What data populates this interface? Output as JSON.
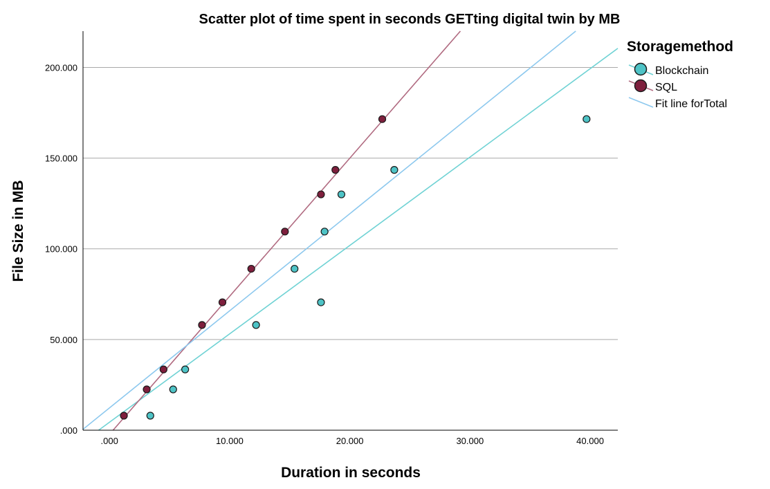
{
  "chart_data": {
    "type": "scatter",
    "title": "Scatter plot of time spent in seconds GETting digital twin by MB",
    "xlabel": "Duration in seconds",
    "ylabel": "File Size in MB",
    "xlim": [
      -2.2,
      42.3
    ],
    "ylim": [
      0,
      220
    ],
    "x_ticks": [
      0,
      10,
      20,
      30,
      40
    ],
    "x_tick_labels": [
      ".000",
      "10.000",
      "20.000",
      "30.000",
      "40.000"
    ],
    "y_ticks": [
      0,
      50,
      100,
      150,
      200
    ],
    "y_tick_labels": [
      ".000",
      "50.000",
      "100.000",
      "150.000",
      "200.000"
    ],
    "grid": "horizontal",
    "legend_title": "Storagemethod",
    "legend_placement": "right",
    "series": [
      {
        "name": "Blockchain",
        "color": "#4ec3c6",
        "points": [
          {
            "x": 3.4,
            "y": 8
          },
          {
            "x": 5.3,
            "y": 22.5
          },
          {
            "x": 6.3,
            "y": 33.5
          },
          {
            "x": 12.2,
            "y": 58
          },
          {
            "x": 17.6,
            "y": 70.5
          },
          {
            "x": 15.4,
            "y": 89
          },
          {
            "x": 17.9,
            "y": 109.5
          },
          {
            "x": 19.3,
            "y": 130
          },
          {
            "x": 23.7,
            "y": 143.5
          },
          {
            "x": 39.7,
            "y": 171.5
          }
        ],
        "fit": {
          "x": [
            -0.9,
            42.3
          ],
          "y": [
            0,
            210.5
          ],
          "color": "#6fd2d4"
        }
      },
      {
        "name": "SQL",
        "color": "#7e1f3d",
        "points": [
          {
            "x": 1.2,
            "y": 8
          },
          {
            "x": 3.1,
            "y": 22.5
          },
          {
            "x": 4.5,
            "y": 33.5
          },
          {
            "x": 7.7,
            "y": 58
          },
          {
            "x": 9.4,
            "y": 70.5
          },
          {
            "x": 11.8,
            "y": 89
          },
          {
            "x": 14.6,
            "y": 109.5
          },
          {
            "x": 17.6,
            "y": 130
          },
          {
            "x": 18.8,
            "y": 143.5
          },
          {
            "x": 22.7,
            "y": 171.5
          }
        ],
        "fit": {
          "x": [
            0.3,
            29.2
          ],
          "y": [
            0,
            220
          ],
          "color": "#b06a80"
        }
      },
      {
        "name": "Fit line forTotal",
        "type": "line",
        "color": "#8cc8ee",
        "fit": {
          "x": [
            -2.2,
            38.8
          ],
          "y": [
            0.5,
            220
          ]
        }
      }
    ]
  }
}
